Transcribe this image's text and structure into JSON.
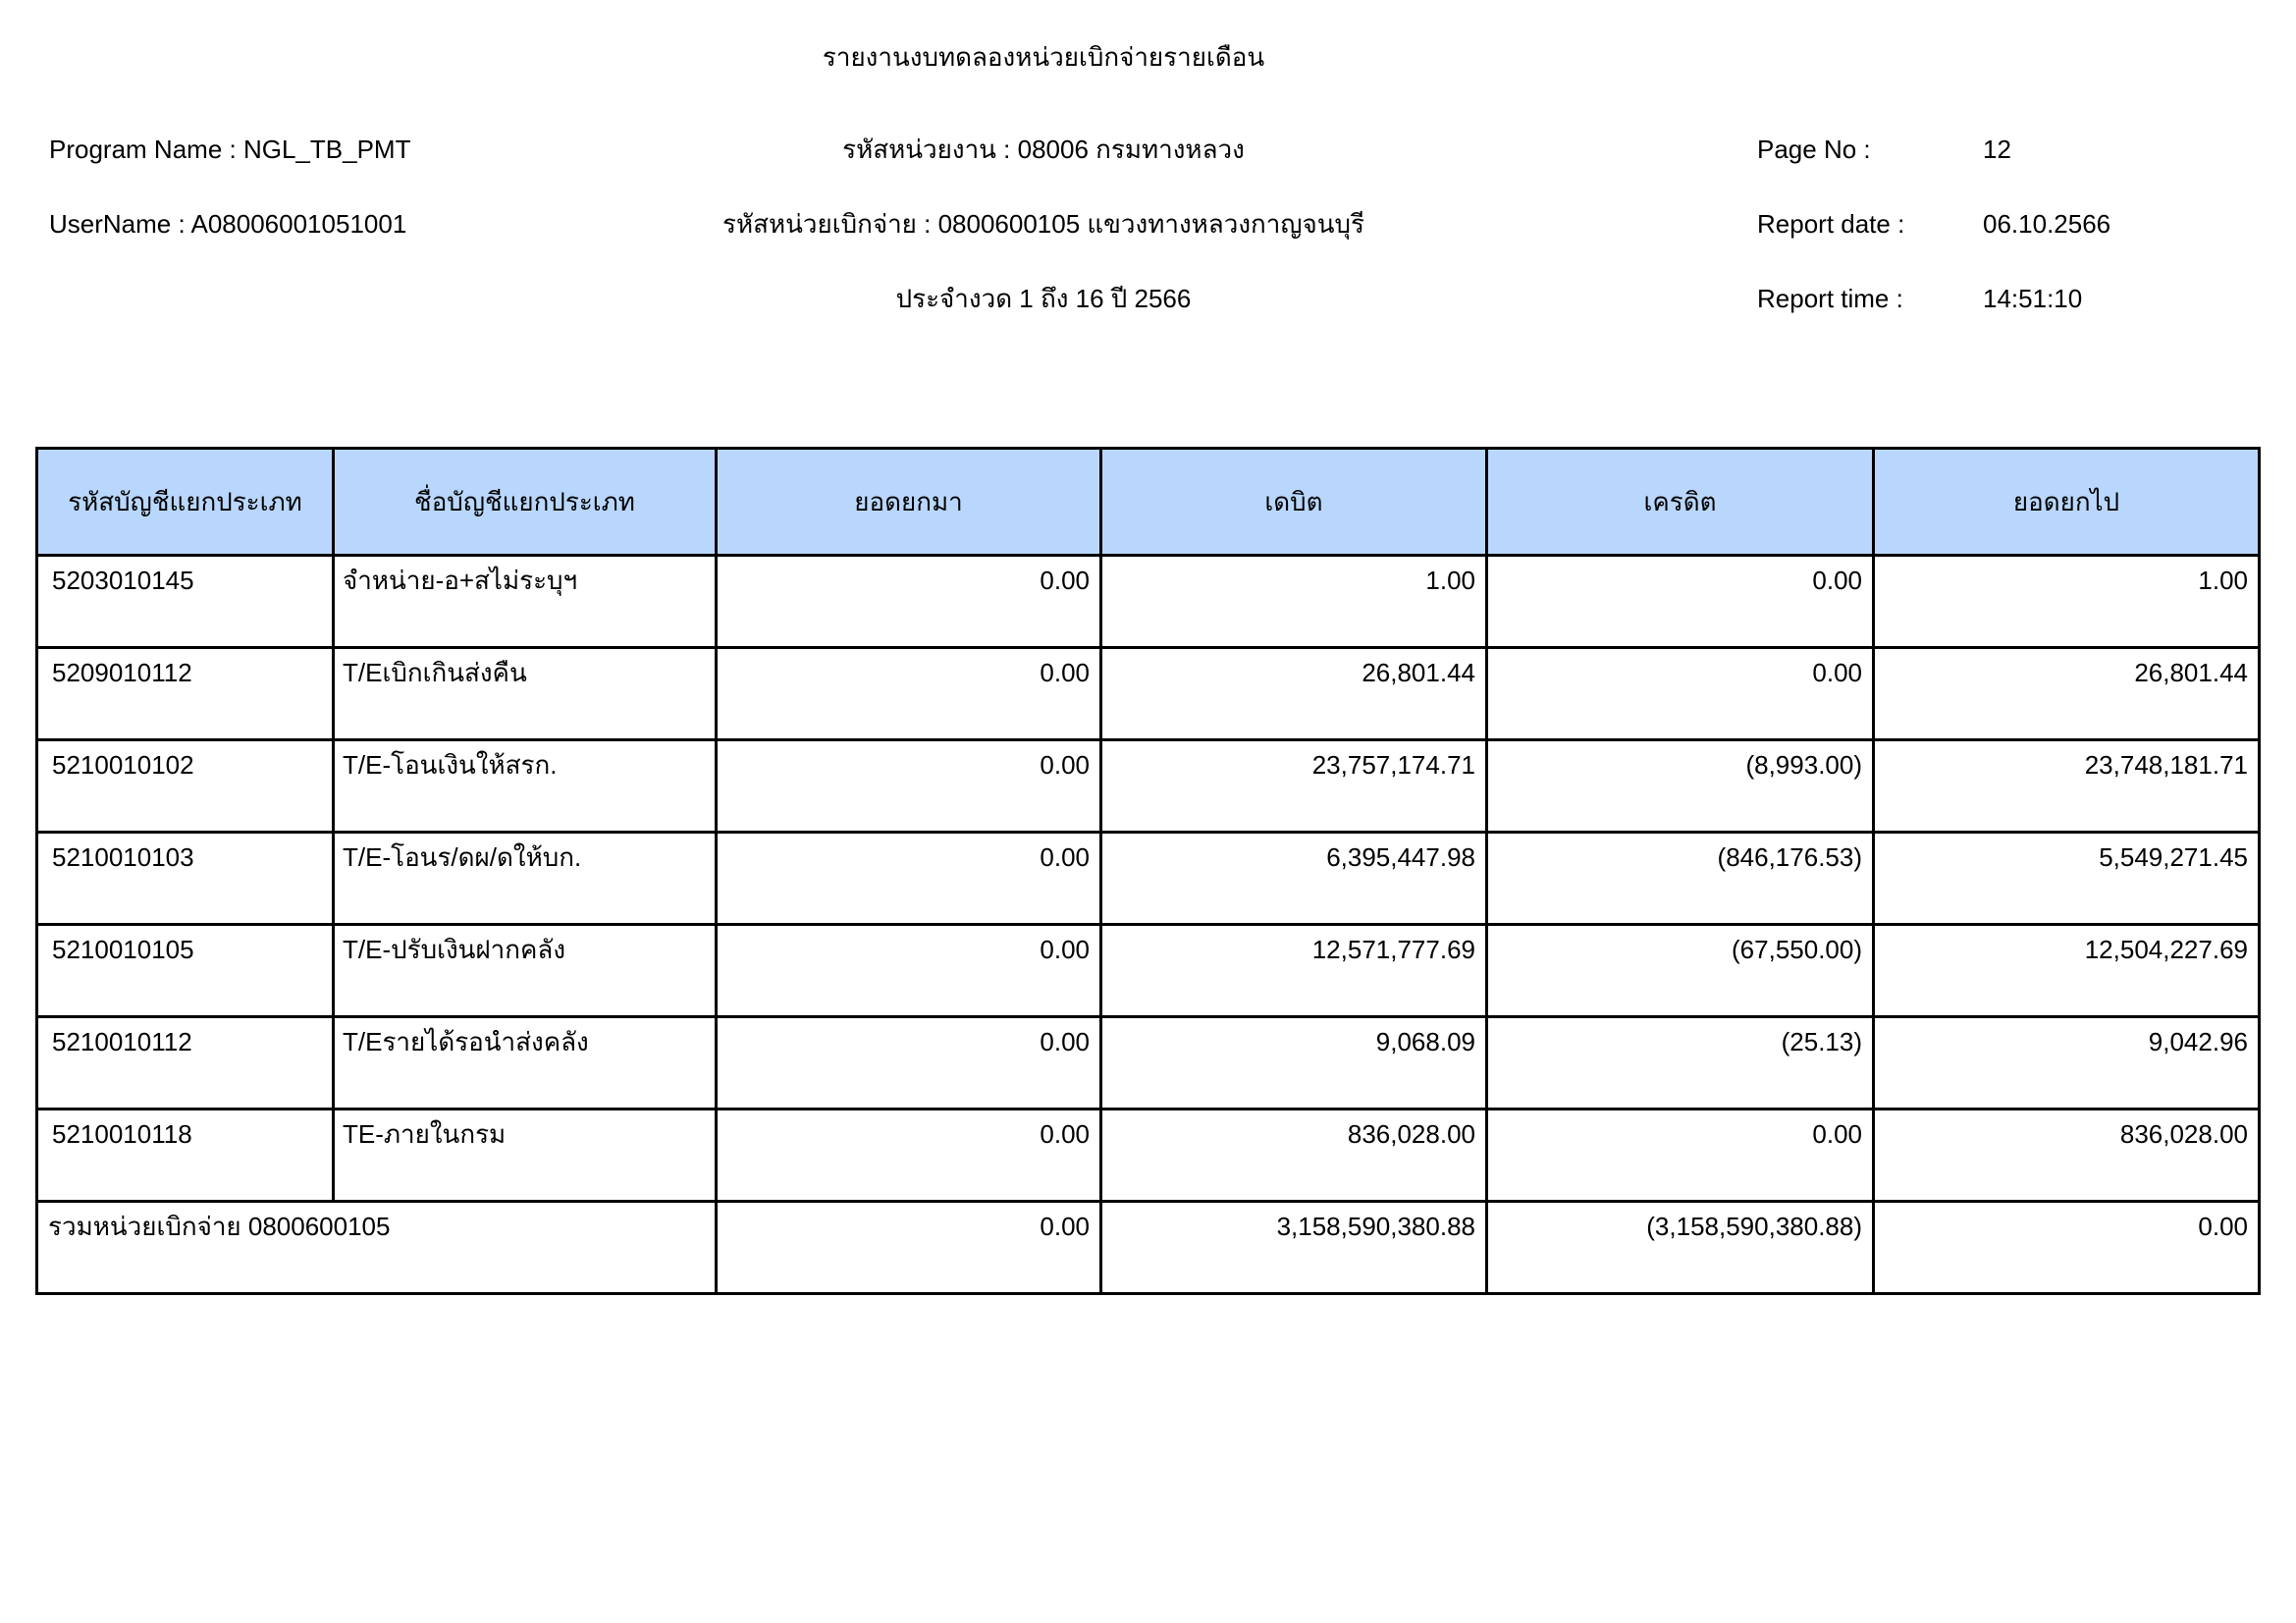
{
  "report": {
    "title": "รายงานงบทดลองหน่วยเบิกจ่ายรายเดือน",
    "program_name_label": "Program Name :",
    "program_name_value": "NGL_TB_PMT",
    "username_label": "UserName :",
    "username_value": "A08006001051001",
    "agency_line": "รหัสหน่วยงาน : 08006 กรมทางหลวง",
    "disburse_unit_line": "รหัสหน่วยเบิกจ่าย : 0800600105 แขวงทางหลวงกาญจนบุรี",
    "period_line": "ประจำงวด 1 ถึง 16 ปี 2566",
    "page_no_label": "Page No :",
    "page_no_value": "12",
    "report_date_label": "Report date :",
    "report_date_value": "06.10.2566",
    "report_time_label": "Report time :",
    "report_time_value": "14:51:10"
  },
  "table": {
    "headers": [
      "รหัสบัญชีแยกประเภท",
      "ชื่อบัญชีแยกประเภท",
      "ยอดยกมา",
      "เดบิต",
      "เครดิต",
      "ยอดยกไป"
    ],
    "rows": [
      {
        "code": "5203010145",
        "name": "จำหน่าย-อ+สไม่ระบุฯ",
        "carry_forward": "0.00",
        "debit": "1.00",
        "credit": "0.00",
        "carry_over": "1.00"
      },
      {
        "code": "5209010112",
        "name": "T/Eเบิกเกินส่งคืน",
        "carry_forward": "0.00",
        "debit": "26,801.44",
        "credit": "0.00",
        "carry_over": "26,801.44"
      },
      {
        "code": "5210010102",
        "name": "T/E-โอนเงินให้สรก.",
        "carry_forward": "0.00",
        "debit": "23,757,174.71",
        "credit": "(8,993.00)",
        "carry_over": "23,748,181.71"
      },
      {
        "code": "5210010103",
        "name": "T/E-โอนร/ดผ/ดให้บก.",
        "carry_forward": "0.00",
        "debit": "6,395,447.98",
        "credit": "(846,176.53)",
        "carry_over": "5,549,271.45"
      },
      {
        "code": "5210010105",
        "name": "T/E-ปรับเงินฝากคลัง",
        "carry_forward": "0.00",
        "debit": "12,571,777.69",
        "credit": "(67,550.00)",
        "carry_over": "12,504,227.69"
      },
      {
        "code": "5210010112",
        "name": "T/Eรายได้รอนำส่งคลัง",
        "carry_forward": "0.00",
        "debit": "9,068.09",
        "credit": "(25.13)",
        "carry_over": "9,042.96"
      },
      {
        "code": "5210010118",
        "name": "TE-ภายในกรม",
        "carry_forward": "0.00",
        "debit": "836,028.00",
        "credit": "0.00",
        "carry_over": "836,028.00"
      }
    ],
    "total_row": {
      "label": "รวมหน่วยเบิกจ่าย 0800600105",
      "carry_forward": "0.00",
      "debit": "3,158,590,380.88",
      "credit": "(3,158,590,380.88)",
      "carry_over": "0.00"
    }
  },
  "colors": {
    "header_bg": "#b9d7fc",
    "total_bg": "#fbfb63",
    "border": "#000000",
    "page_bg": "#ffffff"
  }
}
